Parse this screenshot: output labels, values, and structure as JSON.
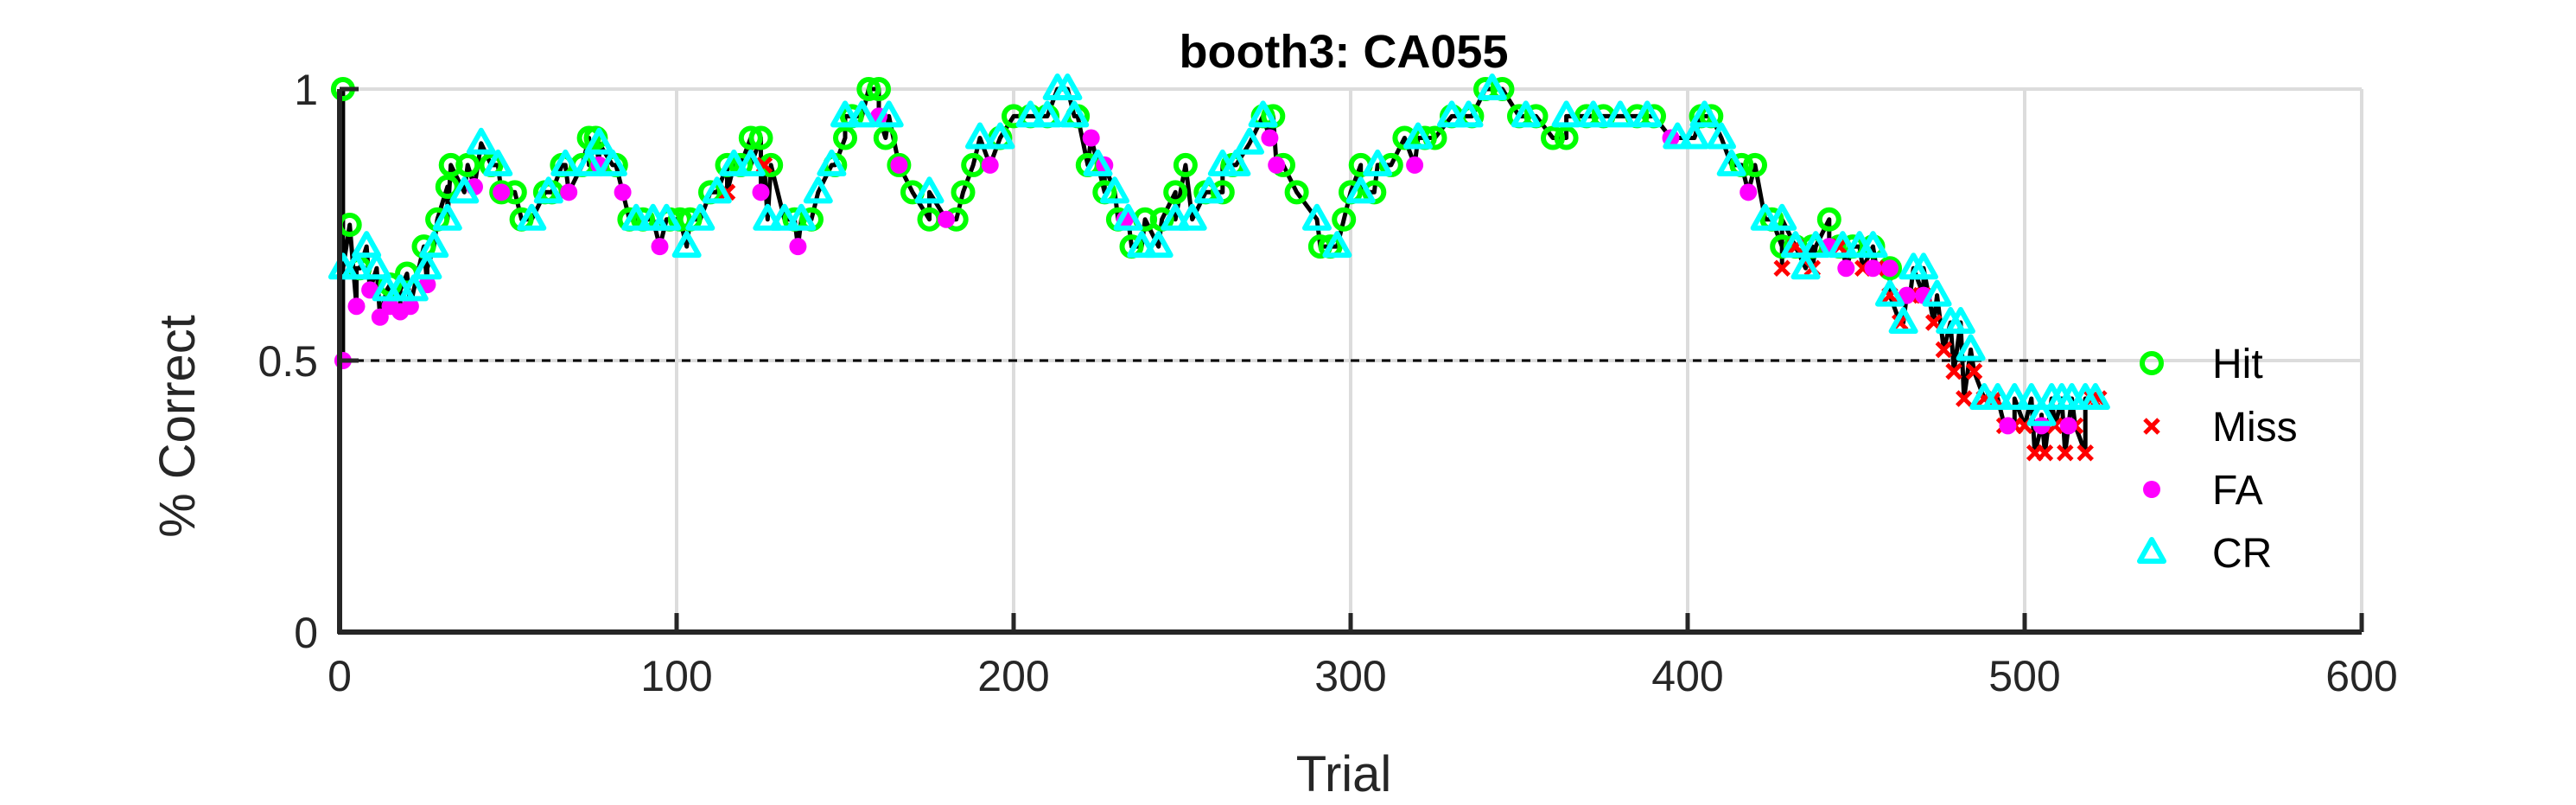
{
  "chart_data": {
    "type": "scatter",
    "title": "booth3: CA055",
    "xlabel": "Trial",
    "ylabel": "% Correct",
    "xlim": [
      0,
      600
    ],
    "ylim": [
      0,
      1
    ],
    "xticks": [
      0,
      100,
      200,
      300,
      400,
      500,
      600
    ],
    "yticks": [
      0,
      0.5,
      1
    ],
    "xtick_labels": [
      "0",
      "100",
      "200",
      "300",
      "400",
      "500",
      "600"
    ],
    "ytick_labels": [
      "0",
      "0.5",
      "1"
    ],
    "grid": true,
    "chance_line": {
      "y": 0.5,
      "x": [
        0,
        525
      ],
      "style": "dashed"
    },
    "legend_position": "right",
    "series": [
      {
        "name": "Hit",
        "marker": "circle-open",
        "color": "#00ff00",
        "points": [
          [
            1,
            1
          ],
          [
            3,
            0.75
          ],
          [
            6,
            0.67
          ],
          [
            15,
            0.64
          ],
          [
            20,
            0.66
          ],
          [
            25,
            0.71
          ],
          [
            29,
            0.76
          ],
          [
            32,
            0.82
          ],
          [
            33,
            0.86
          ],
          [
            38,
            0.86
          ],
          [
            45,
            0.86
          ],
          [
            48,
            0.81
          ],
          [
            52,
            0.81
          ],
          [
            54,
            0.76
          ],
          [
            61,
            0.81
          ],
          [
            63,
            0.81
          ],
          [
            66,
            0.86
          ],
          [
            72,
            0.86
          ],
          [
            74,
            0.91
          ],
          [
            76,
            0.91
          ],
          [
            82,
            0.86
          ],
          [
            86,
            0.76
          ],
          [
            90,
            0.76
          ],
          [
            98,
            0.76
          ],
          [
            101,
            0.76
          ],
          [
            104,
            0.76
          ],
          [
            110,
            0.81
          ],
          [
            115,
            0.86
          ],
          [
            119,
            0.86
          ],
          [
            122,
            0.91
          ],
          [
            125,
            0.91
          ],
          [
            128,
            0.86
          ],
          [
            135,
            0.76
          ],
          [
            140,
            0.76
          ],
          [
            147,
            0.86
          ],
          [
            150,
            0.91
          ],
          [
            152,
            0.95
          ],
          [
            157,
            1
          ],
          [
            160,
            1
          ],
          [
            162,
            0.91
          ],
          [
            166,
            0.86
          ],
          [
            170,
            0.81
          ],
          [
            175,
            0.76
          ],
          [
            183,
            0.76
          ],
          [
            185,
            0.81
          ],
          [
            188,
            0.86
          ],
          [
            196,
            0.91
          ],
          [
            200,
            0.95
          ],
          [
            205,
            0.95
          ],
          [
            210,
            0.95
          ],
          [
            219,
            0.95
          ],
          [
            222,
            0.86
          ],
          [
            227,
            0.81
          ],
          [
            231,
            0.76
          ],
          [
            235,
            0.71
          ],
          [
            239,
            0.76
          ],
          [
            244,
            0.76
          ],
          [
            248,
            0.81
          ],
          [
            251,
            0.86
          ],
          [
            257,
            0.81
          ],
          [
            262,
            0.81
          ],
          [
            265,
            0.86
          ],
          [
            274,
            0.95
          ],
          [
            277,
            0.95
          ],
          [
            280,
            0.86
          ],
          [
            284,
            0.81
          ],
          [
            291,
            0.71
          ],
          [
            294,
            0.71
          ],
          [
            298,
            0.76
          ],
          [
            300,
            0.81
          ],
          [
            303,
            0.86
          ],
          [
            307,
            0.81
          ],
          [
            312,
            0.86
          ],
          [
            316,
            0.91
          ],
          [
            322,
            0.91
          ],
          [
            325,
            0.91
          ],
          [
            330,
            0.95
          ],
          [
            336,
            0.95
          ],
          [
            340,
            1
          ],
          [
            345,
            1
          ],
          [
            350,
            0.95
          ],
          [
            355,
            0.95
          ],
          [
            360,
            0.91
          ],
          [
            364,
            0.91
          ],
          [
            370,
            0.95
          ],
          [
            375,
            0.95
          ],
          [
            385,
            0.95
          ],
          [
            390,
            0.95
          ],
          [
            404,
            0.95
          ],
          [
            407,
            0.95
          ],
          [
            416,
            0.86
          ],
          [
            420,
            0.86
          ],
          [
            425,
            0.76
          ],
          [
            428,
            0.71
          ],
          [
            432,
            0.71
          ],
          [
            437,
            0.71
          ],
          [
            442,
            0.76
          ],
          [
            445,
            0.71
          ],
          [
            449,
            0.71
          ],
          [
            455,
            0.71
          ],
          [
            460,
            0.67
          ]
        ]
      },
      {
        "name": "Miss",
        "marker": "x",
        "color": "#ff0000",
        "points": [
          [
            115,
            0.81
          ],
          [
            126,
            0.86
          ],
          [
            428,
            0.67
          ],
          [
            432,
            0.71
          ],
          [
            437,
            0.67
          ],
          [
            445,
            0.71
          ],
          [
            452,
            0.67
          ],
          [
            456,
            0.67
          ],
          [
            460,
            0.62
          ],
          [
            463,
            0.57
          ],
          [
            466,
            0.62
          ],
          [
            470,
            0.62
          ],
          [
            473,
            0.57
          ],
          [
            476,
            0.52
          ],
          [
            479,
            0.48
          ],
          [
            482,
            0.43
          ],
          [
            485,
            0.48
          ],
          [
            488,
            0.43
          ],
          [
            491,
            0.43
          ],
          [
            494,
            0.38
          ],
          [
            497,
            0.38
          ],
          [
            500,
            0.38
          ],
          [
            503,
            0.33
          ],
          [
            506,
            0.33
          ],
          [
            509,
            0.38
          ],
          [
            512,
            0.33
          ],
          [
            515,
            0.38
          ],
          [
            518,
            0.33
          ],
          [
            520,
            0.43
          ],
          [
            522,
            0.43
          ]
        ]
      },
      {
        "name": "FA",
        "marker": "dot",
        "color": "#ff00ff",
        "points": [
          [
            1,
            0.5
          ],
          [
            5,
            0.6
          ],
          [
            9,
            0.63
          ],
          [
            12,
            0.58
          ],
          [
            15,
            0.6
          ],
          [
            18,
            0.59
          ],
          [
            21,
            0.6
          ],
          [
            26,
            0.64
          ],
          [
            40,
            0.82
          ],
          [
            48,
            0.81
          ],
          [
            68,
            0.81
          ],
          [
            77,
            0.86
          ],
          [
            84,
            0.81
          ],
          [
            95,
            0.71
          ],
          [
            125,
            0.81
          ],
          [
            136,
            0.71
          ],
          [
            160,
            0.95
          ],
          [
            166,
            0.86
          ],
          [
            180,
            0.76
          ],
          [
            193,
            0.86
          ],
          [
            223,
            0.91
          ],
          [
            227,
            0.86
          ],
          [
            233,
            0.76
          ],
          [
            276,
            0.91
          ],
          [
            278,
            0.86
          ],
          [
            319,
            0.86
          ],
          [
            395,
            0.91
          ],
          [
            418,
            0.81
          ],
          [
            442,
            0.71
          ],
          [
            447,
            0.67
          ],
          [
            455,
            0.67
          ],
          [
            460,
            0.67
          ],
          [
            465,
            0.62
          ],
          [
            470,
            0.62
          ],
          [
            495,
            0.38
          ],
          [
            505,
            0.38
          ],
          [
            513,
            0.38
          ]
        ]
      },
      {
        "name": "CR",
        "marker": "triangle",
        "color": "#00ffff",
        "points": [
          [
            1,
            0.67
          ],
          [
            5,
            0.67
          ],
          [
            8,
            0.71
          ],
          [
            11,
            0.67
          ],
          [
            14,
            0.63
          ],
          [
            18,
            0.63
          ],
          [
            22,
            0.63
          ],
          [
            26,
            0.67
          ],
          [
            28,
            0.71
          ],
          [
            32,
            0.76
          ],
          [
            37,
            0.81
          ],
          [
            42,
            0.9
          ],
          [
            47,
            0.86
          ],
          [
            57,
            0.76
          ],
          [
            62,
            0.81
          ],
          [
            67,
            0.86
          ],
          [
            74,
            0.86
          ],
          [
            77,
            0.9
          ],
          [
            81,
            0.86
          ],
          [
            88,
            0.76
          ],
          [
            93,
            0.76
          ],
          [
            97,
            0.76
          ],
          [
            103,
            0.71
          ],
          [
            107,
            0.76
          ],
          [
            112,
            0.81
          ],
          [
            117,
            0.86
          ],
          [
            122,
            0.86
          ],
          [
            127,
            0.76
          ],
          [
            132,
            0.76
          ],
          [
            137,
            0.76
          ],
          [
            142,
            0.81
          ],
          [
            146,
            0.86
          ],
          [
            150,
            0.95
          ],
          [
            155,
            0.95
          ],
          [
            163,
            0.95
          ],
          [
            175,
            0.81
          ],
          [
            190,
            0.91
          ],
          [
            196,
            0.91
          ],
          [
            205,
            0.95
          ],
          [
            210,
            0.95
          ],
          [
            213,
            1
          ],
          [
            216,
            1
          ],
          [
            218,
            0.95
          ],
          [
            225,
            0.86
          ],
          [
            230,
            0.81
          ],
          [
            234,
            0.76
          ],
          [
            238,
            0.71
          ],
          [
            243,
            0.71
          ],
          [
            248,
            0.76
          ],
          [
            253,
            0.76
          ],
          [
            258,
            0.81
          ],
          [
            262,
            0.86
          ],
          [
            266,
            0.86
          ],
          [
            270,
            0.9
          ],
          [
            274,
            0.95
          ],
          [
            290,
            0.76
          ],
          [
            296,
            0.71
          ],
          [
            303,
            0.81
          ],
          [
            308,
            0.86
          ],
          [
            320,
            0.91
          ],
          [
            330,
            0.95
          ],
          [
            335,
            0.95
          ],
          [
            342,
            1
          ],
          [
            352,
            0.95
          ],
          [
            364,
            0.95
          ],
          [
            372,
            0.95
          ],
          [
            380,
            0.95
          ],
          [
            388,
            0.95
          ],
          [
            397,
            0.91
          ],
          [
            402,
            0.91
          ],
          [
            405,
            0.95
          ],
          [
            410,
            0.91
          ],
          [
            413,
            0.86
          ],
          [
            423,
            0.76
          ],
          [
            428,
            0.76
          ],
          [
            432,
            0.71
          ],
          [
            435,
            0.67
          ],
          [
            438,
            0.71
          ],
          [
            446,
            0.71
          ],
          [
            451,
            0.71
          ],
          [
            455,
            0.71
          ],
          [
            460,
            0.62
          ],
          [
            464,
            0.57
          ],
          [
            467,
            0.67
          ],
          [
            470,
            0.67
          ],
          [
            474,
            0.62
          ],
          [
            478,
            0.57
          ],
          [
            481,
            0.57
          ],
          [
            484,
            0.52
          ],
          [
            488,
            0.43
          ],
          [
            492,
            0.43
          ],
          [
            497,
            0.43
          ],
          [
            502,
            0.43
          ],
          [
            505,
            0.4
          ],
          [
            508,
            0.43
          ],
          [
            511,
            0.43
          ],
          [
            514,
            0.43
          ],
          [
            518,
            0.43
          ],
          [
            521,
            0.43
          ]
        ]
      }
    ]
  }
}
